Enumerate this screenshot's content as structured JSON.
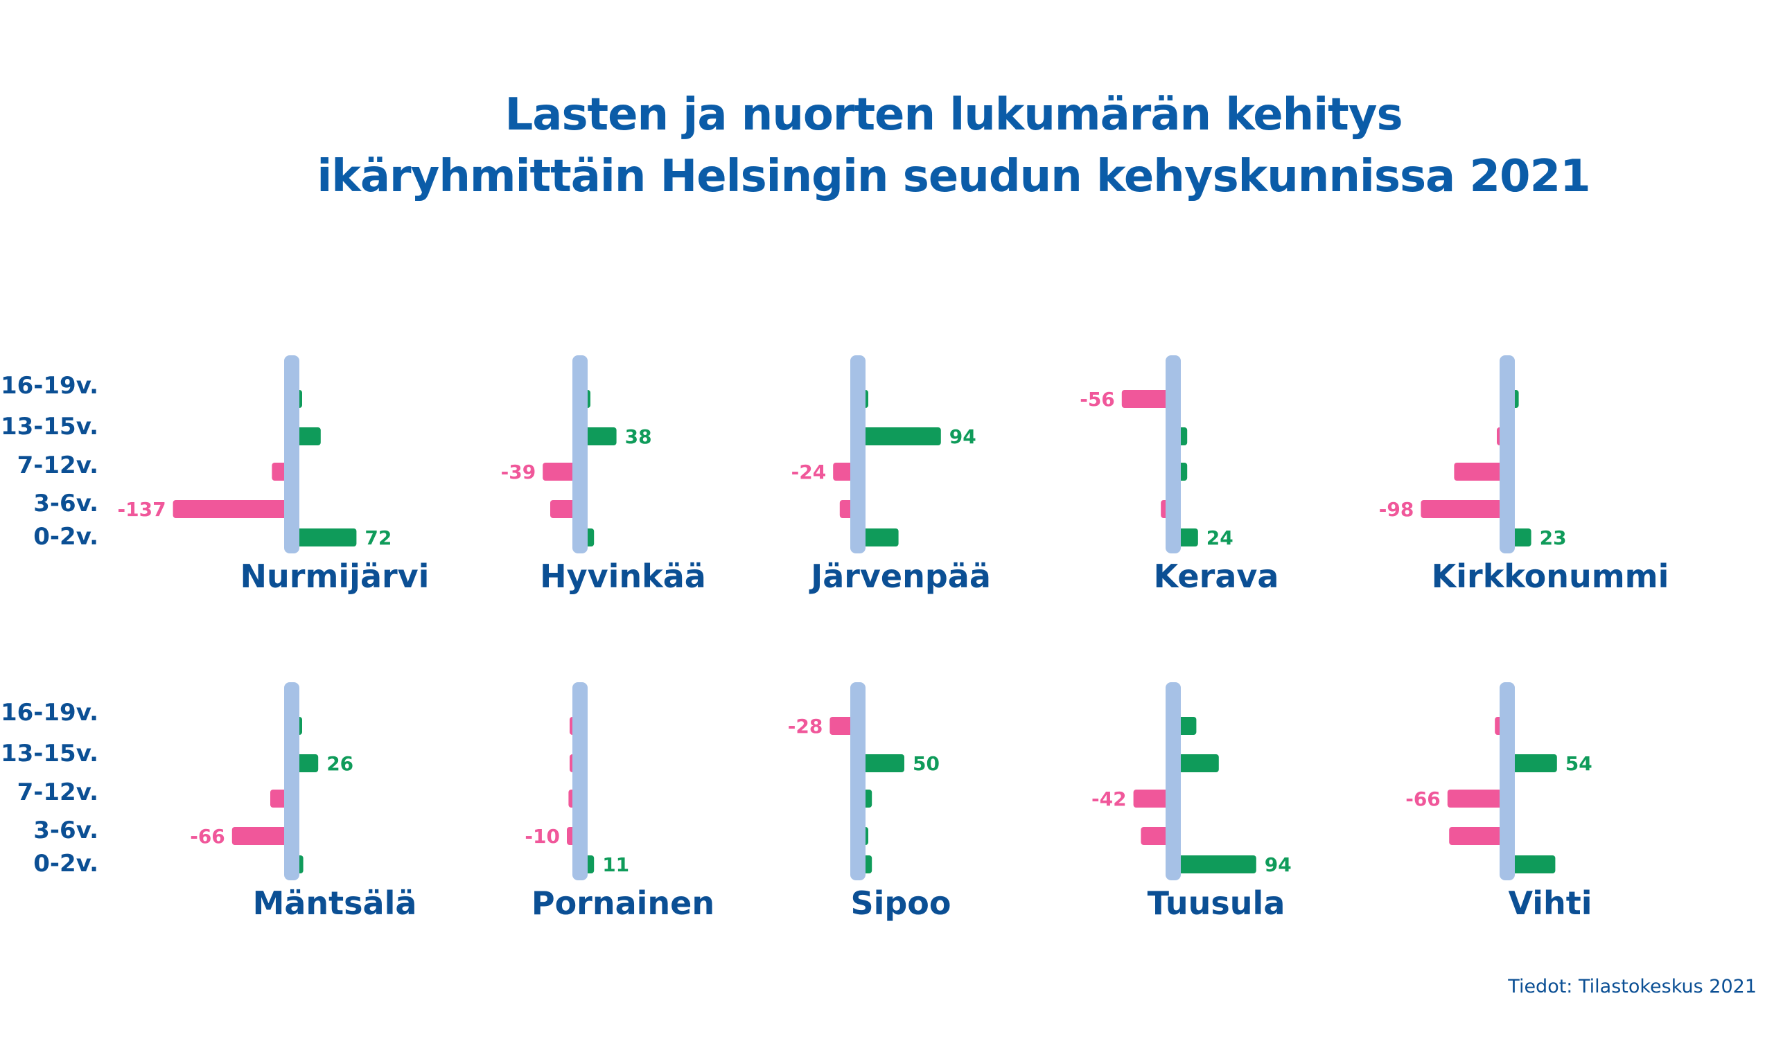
{
  "colors": {
    "title": "#0b5ca8",
    "text": "#0b4f94",
    "positive": "#0f9b5a",
    "negative": "#f0579a",
    "axis": "#a6c1e6"
  },
  "source": "Tiedot: Tilastokeskus 2021",
  "chart_data": {
    "type": "bar",
    "orientation": "horizontal",
    "title_lines": [
      "Lasten ja nuorten lukumärän kehitys",
      "ikäryhmittäin Helsingin seudun kehyskunnissa 2021"
    ],
    "categories": [
      "16-19v.",
      "13-15v.",
      "7-12v.",
      "3-6v.",
      "0-2v."
    ],
    "panels": [
      {
        "name": "Nurmijärvi",
        "values": [
          6,
          29,
          -18,
          -137,
          72
        ],
        "labels": {
          "3": "-137",
          "4": "72"
        }
      },
      {
        "name": "Hyvinkää",
        "values": [
          6,
          38,
          -39,
          -30,
          11
        ],
        "labels": {
          "1": "38",
          "2": "-39"
        }
      },
      {
        "name": "Järvenpää",
        "values": [
          3,
          94,
          -24,
          -16,
          43
        ],
        "labels": {
          "1": "94",
          "2": "-24"
        }
      },
      {
        "name": "Kerava",
        "values": [
          -56,
          11,
          11,
          -9,
          24
        ],
        "labels": {
          "0": "-56",
          "4": "24"
        }
      },
      {
        "name": "Kirkkonummi",
        "values": [
          8,
          -5,
          -58,
          -98,
          23
        ],
        "labels": {
          "3": "-98",
          "4": "23"
        }
      },
      {
        "name": "Mäntsälä",
        "values": [
          2,
          26,
          -20,
          -66,
          8
        ],
        "labels": {
          "1": "26",
          "3": "-66"
        }
      },
      {
        "name": "Pornainen",
        "values": [
          -5,
          -6,
          -8,
          -10,
          11
        ],
        "labels": {
          "3": "-10",
          "4": "11"
        }
      },
      {
        "name": "Sipoo",
        "values": [
          -28,
          50,
          11,
          6,
          11
        ],
        "labels": {
          "0": "-28",
          "1": "50"
        }
      },
      {
        "name": "Tuusula",
        "values": [
          22,
          49,
          -42,
          -33,
          94
        ],
        "labels": {
          "2": "-42",
          "4": "94"
        }
      },
      {
        "name": "Vihti",
        "values": [
          -9,
          54,
          -66,
          -64,
          52
        ],
        "labels": {
          "1": "54",
          "2": "-66"
        }
      }
    ]
  }
}
